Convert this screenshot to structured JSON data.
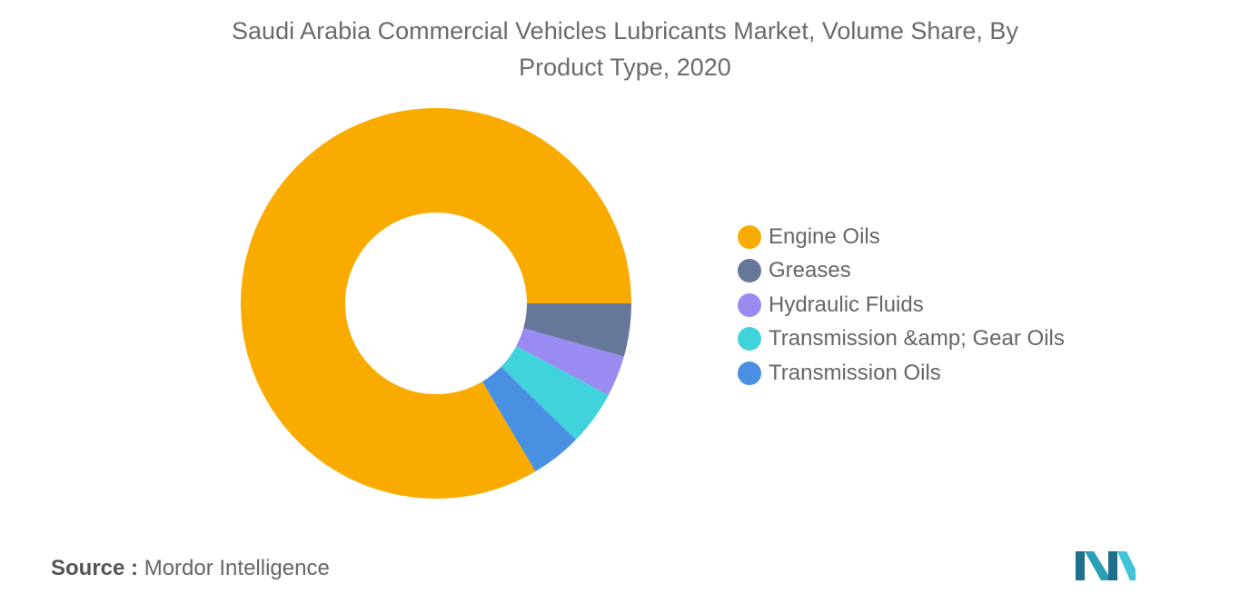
{
  "title_line1": "Saudi Arabia Commercial Vehicles Lubricants Market, Volume Share, By",
  "title_line2": "Product Type, 2020",
  "source_label": "Source :",
  "source_value": "Mordor Intelligence",
  "logo_icon": "mordor-intelligence-logo-icon",
  "chart_data": {
    "type": "pie",
    "variant": "donut",
    "title": "Saudi Arabia Commercial Vehicles Lubricants Market, Volume Share, By Product Type, 2020",
    "legend_position": "right",
    "series": [
      {
        "name": "Engine Oils",
        "value": 83.5,
        "color": "#FAAB00"
      },
      {
        "name": "Greases",
        "value": 4.4,
        "color": "#667799"
      },
      {
        "name": "Hydraulic Fluids",
        "value": 3.4,
        "color": "#9A8BF2"
      },
      {
        "name": "Transmission &amp; Gear Oils",
        "value": 4.5,
        "color": "#40D3DC"
      },
      {
        "name": "Transmission Oils",
        "value": 4.2,
        "color": "#4A90E2"
      }
    ]
  }
}
